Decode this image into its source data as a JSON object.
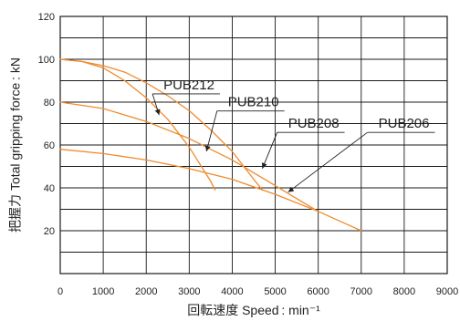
{
  "chart_data": {
    "type": "line",
    "title": "",
    "xlabel": "回転速度 Speed : min⁻¹",
    "ylabel": "把握力 Total gripping force : kN",
    "xlim": [
      0,
      9000
    ],
    "ylim": [
      0,
      120
    ],
    "x_ticks": [
      "0",
      "1000",
      "2000",
      "3000",
      "4000",
      "5000",
      "6000",
      "7000",
      "8000",
      "9000"
    ],
    "y_ticks": [
      "20",
      "40",
      "60",
      "80",
      "100",
      "120"
    ],
    "grid": true,
    "series_color": "#f08a2c",
    "series": [
      {
        "name": "PUB212",
        "x": [
          0,
          500,
          1000,
          1500,
          2000,
          2500,
          3000,
          3500,
          3600
        ],
        "y": [
          100,
          99,
          96,
          90,
          82,
          72,
          59,
          43,
          39
        ],
        "label_at": [
          2400,
          86
        ],
        "pointer_at": [
          2300,
          74
        ]
      },
      {
        "name": "PUB210",
        "x": [
          0,
          500,
          1000,
          1500,
          2000,
          2500,
          3000,
          3500,
          4000,
          4500,
          4700
        ],
        "y": [
          100,
          99,
          97,
          94,
          89,
          83,
          76,
          67,
          57,
          44,
          39
        ],
        "label_at": [
          3900,
          78
        ],
        "pointer_at": [
          3400,
          57
        ]
      },
      {
        "name": "PUB208",
        "x": [
          0,
          1000,
          2000,
          3000,
          4000,
          5000,
          5500,
          6000
        ],
        "y": [
          80,
          77,
          71,
          63,
          53,
          41,
          35,
          29
        ],
        "label_at": [
          5300,
          68
        ],
        "pointer_at": [
          4700,
          49
        ]
      },
      {
        "name": "PUB206",
        "x": [
          0,
          1000,
          2000,
          3000,
          4000,
          5000,
          6000,
          7000
        ],
        "y": [
          58,
          56,
          53,
          49,
          44,
          37,
          29,
          20
        ],
        "label_at": [
          7400,
          68
        ],
        "pointer_at": [
          5300,
          38
        ]
      }
    ]
  }
}
